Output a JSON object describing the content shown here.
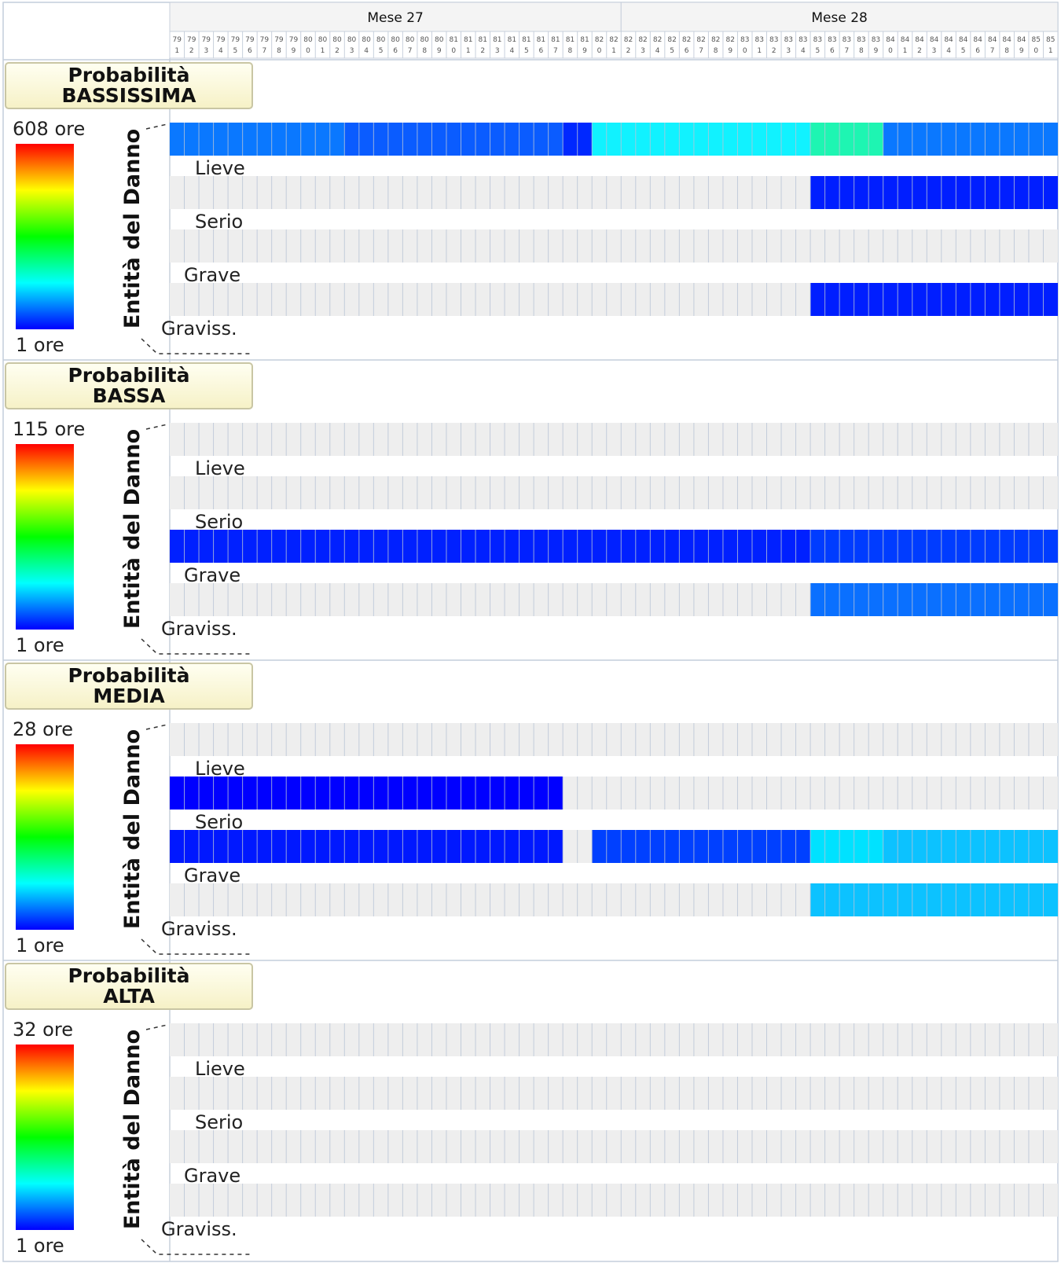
{
  "chart_data": {
    "type": "heatmap",
    "months": [
      "Mese 27",
      "Mese 28"
    ],
    "days": [
      [
        "79",
        "1"
      ],
      [
        "79",
        "2"
      ],
      [
        "79",
        "3"
      ],
      [
        "79",
        "4"
      ],
      [
        "79",
        "5"
      ],
      [
        "79",
        "6"
      ],
      [
        "79",
        "7"
      ],
      [
        "79",
        "8"
      ],
      [
        "79",
        "9"
      ],
      [
        "80",
        "0"
      ],
      [
        "80",
        "1"
      ],
      [
        "80",
        "2"
      ],
      [
        "80",
        "3"
      ],
      [
        "80",
        "4"
      ],
      [
        "80",
        "5"
      ],
      [
        "80",
        "6"
      ],
      [
        "80",
        "7"
      ],
      [
        "80",
        "8"
      ],
      [
        "80",
        "9"
      ],
      [
        "81",
        "0"
      ],
      [
        "81",
        "1"
      ],
      [
        "81",
        "2"
      ],
      [
        "81",
        "3"
      ],
      [
        "81",
        "4"
      ],
      [
        "81",
        "5"
      ],
      [
        "81",
        "6"
      ],
      [
        "81",
        "7"
      ],
      [
        "81",
        "8"
      ],
      [
        "81",
        "9"
      ],
      [
        "82",
        "0"
      ],
      [
        "82",
        "1"
      ],
      [
        "82",
        "2"
      ],
      [
        "82",
        "3"
      ],
      [
        "82",
        "4"
      ],
      [
        "82",
        "5"
      ],
      [
        "82",
        "6"
      ],
      [
        "82",
        "7"
      ],
      [
        "82",
        "8"
      ],
      [
        "82",
        "9"
      ],
      [
        "83",
        "0"
      ],
      [
        "83",
        "1"
      ],
      [
        "83",
        "2"
      ],
      [
        "83",
        "3"
      ],
      [
        "83",
        "4"
      ],
      [
        "83",
        "5"
      ],
      [
        "83",
        "6"
      ],
      [
        "83",
        "7"
      ],
      [
        "83",
        "8"
      ],
      [
        "83",
        "9"
      ],
      [
        "84",
        "0"
      ],
      [
        "84",
        "1"
      ],
      [
        "84",
        "2"
      ],
      [
        "84",
        "3"
      ],
      [
        "84",
        "4"
      ],
      [
        "84",
        "5"
      ],
      [
        "84",
        "6"
      ],
      [
        "84",
        "7"
      ],
      [
        "84",
        "8"
      ],
      [
        "84",
        "9"
      ],
      [
        "85",
        "0"
      ],
      [
        "85",
        "1"
      ]
    ],
    "month_split_after_day": 31,
    "axis_label": "Entità del Danno",
    "row_labels": [
      "Lieve",
      "Serio",
      "Grave",
      "Graviss."
    ],
    "color_scale": [
      "#0000ff",
      "#00ffff",
      "#00ff00",
      "#ffff00",
      "#ff0000"
    ],
    "empty_color": "#eeeeee",
    "panels": [
      {
        "title_line1": "Probabilità",
        "title_line2": "BASSISSIMA",
        "legend_max": "608 ore",
        "legend_min": "1 ore",
        "rows": [
          [
            {
              "start": 0,
              "end": 12,
              "color": "#0a78ff"
            },
            {
              "start": 12,
              "end": 27,
              "color": "#0a5cff"
            },
            {
              "start": 27,
              "end": 29,
              "color": "#0028ff"
            },
            {
              "start": 29,
              "end": 44,
              "color": "#11f2ff"
            },
            {
              "start": 44,
              "end": 49,
              "color": "#1ef5b2"
            },
            {
              "start": 49,
              "end": 61,
              "color": "#0a78ff"
            }
          ],
          [
            {
              "start": 44,
              "end": 61,
              "color": "#001eff"
            }
          ],
          [],
          [
            {
              "start": 44,
              "end": 61,
              "color": "#001eff"
            }
          ]
        ]
      },
      {
        "title_line1": "Probabilità",
        "title_line2": "BASSA",
        "legend_max": "115 ore",
        "legend_min": "1 ore",
        "rows": [
          [],
          [],
          [
            {
              "start": 0,
              "end": 44,
              "color": "#0020ff"
            },
            {
              "start": 44,
              "end": 61,
              "color": "#003cff"
            }
          ],
          [
            {
              "start": 44,
              "end": 61,
              "color": "#0a70ff"
            }
          ]
        ]
      },
      {
        "title_line1": "Probabilità",
        "title_line2": "MEDIA",
        "legend_max": "28 ore",
        "legend_min": "1 ore",
        "rows": [
          [],
          [
            {
              "start": 0,
              "end": 27,
              "color": "#0000ff"
            }
          ],
          [
            {
              "start": 0,
              "end": 27,
              "color": "#0018ff"
            },
            {
              "start": 29,
              "end": 44,
              "color": "#0040ff"
            },
            {
              "start": 44,
              "end": 49,
              "color": "#00e2ff"
            },
            {
              "start": 49,
              "end": 61,
              "color": "#0cc2ff"
            }
          ],
          [
            {
              "start": 44,
              "end": 61,
              "color": "#0cc2ff"
            }
          ]
        ]
      },
      {
        "title_line1": "Probabilità",
        "title_line2": "ALTA",
        "legend_max": "32 ore",
        "legend_min": "1 ore",
        "rows": [
          [],
          [],
          [],
          []
        ]
      }
    ]
  }
}
